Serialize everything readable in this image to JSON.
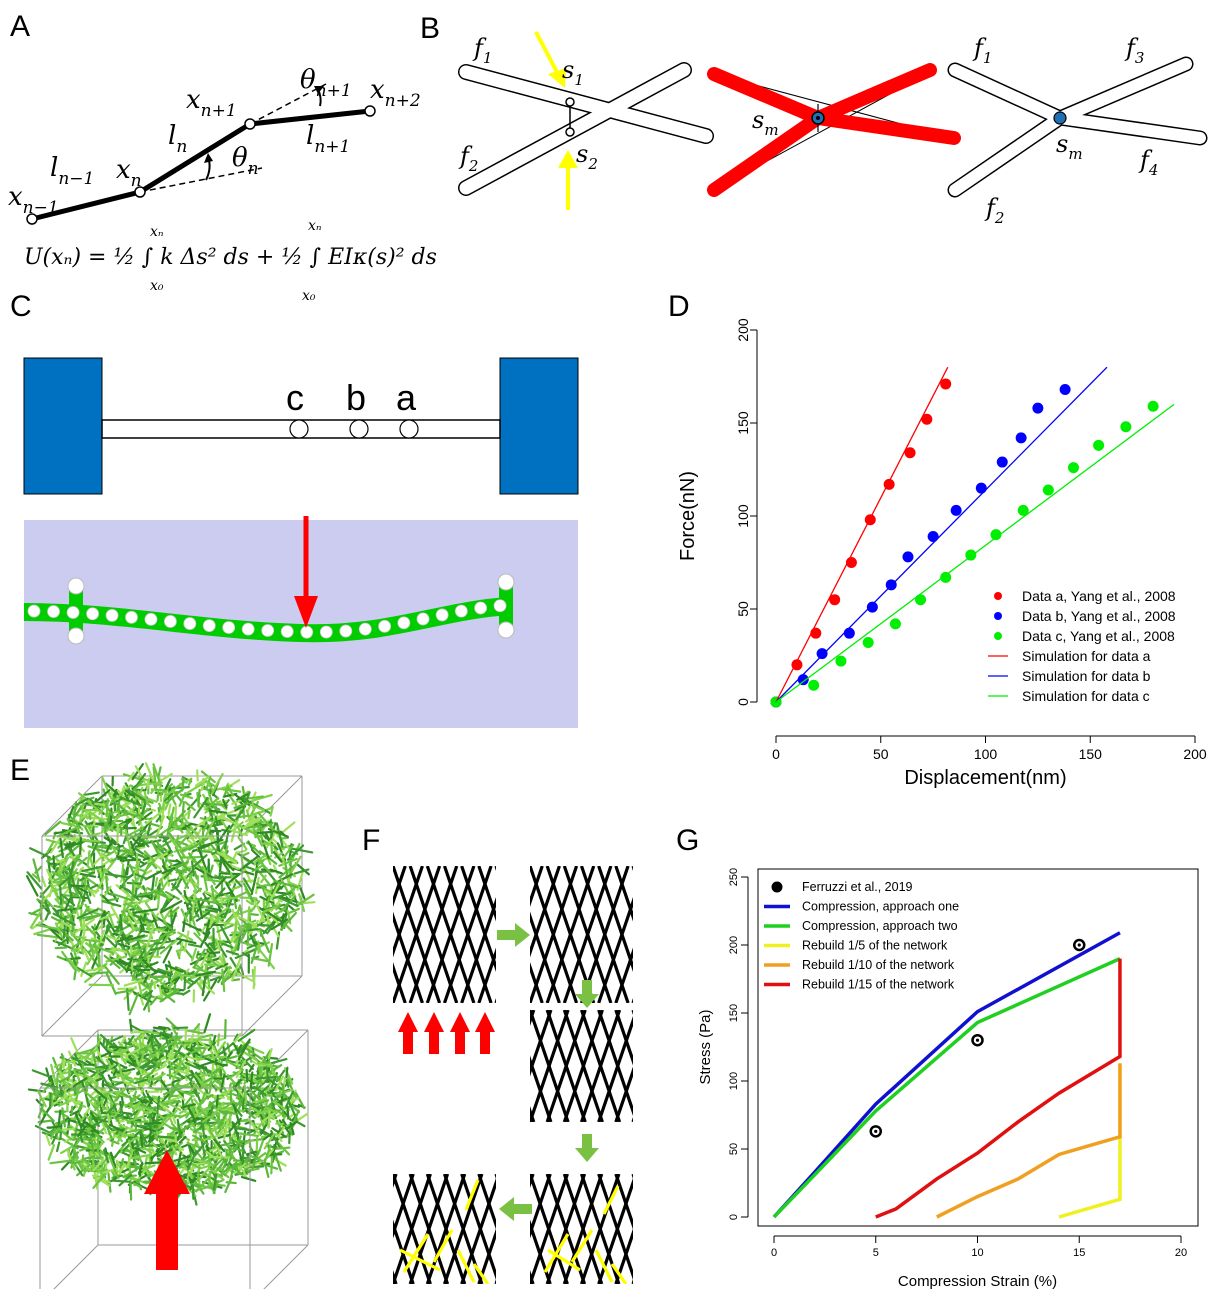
{
  "panels": {
    "A": "A",
    "B": "B",
    "C": "C",
    "D": "D",
    "E": "E",
    "F": "F",
    "G": "G"
  },
  "panelA": {
    "node_labels": [
      "x",
      "x",
      "x",
      "x"
    ],
    "node_subs": [
      "n−1",
      "n",
      "n+1",
      "n+2"
    ],
    "seg_labels": [
      "l",
      "l",
      "l"
    ],
    "seg_subs": [
      "n−1",
      "n",
      "n+1"
    ],
    "angle_labels": [
      "θ",
      "θ"
    ],
    "angle_subs": [
      "n",
      "n+1"
    ],
    "equation": "U(xₙ) = ½ ∫ k Δs² ds + ½ ∫ EIκ(s)² ds",
    "int_lower": "x₀",
    "int_upper": "xₙ"
  },
  "panelB": {
    "labels": [
      "f",
      "f",
      "s",
      "s",
      "s",
      "f",
      "f",
      "f",
      "f",
      "s"
    ],
    "subs": [
      "1",
      "2",
      "1",
      "2",
      "m",
      "1",
      "2",
      "3",
      "4",
      "m"
    ],
    "colors": {
      "highlight": "#ff0000",
      "arrow": "#ffff00",
      "node": "#1f6fb5"
    }
  },
  "panelC": {
    "point_labels": [
      "c",
      "b",
      "a"
    ],
    "colors": {
      "block": "#0070c0",
      "sim_bg": "#ccccf0",
      "beam": "#00cc00",
      "force": "#ff0000"
    }
  },
  "panelD": {
    "chart_data": {
      "type": "scatter",
      "xlabel": "Displacement(nm)",
      "ylabel": "Force(nN)",
      "xlim": [
        0,
        200
      ],
      "ylim": [
        0,
        200
      ],
      "xticks": [
        0,
        50,
        100,
        150,
        200
      ],
      "yticks": [
        0,
        50,
        100,
        150,
        200
      ],
      "legend_position": "bottom-right",
      "series": [
        {
          "name": "Data a, Yang et al., 2008",
          "kind": "points",
          "color": "#ff0000",
          "x": [
            0,
            10,
            19,
            28,
            36,
            45,
            54,
            64,
            72,
            81
          ],
          "y": [
            0,
            20,
            37,
            55,
            75,
            98,
            117,
            134,
            152,
            171
          ]
        },
        {
          "name": "Data b, Yang et al., 2008",
          "kind": "points",
          "color": "#0000ff",
          "x": [
            0,
            13,
            22,
            35,
            46,
            55,
            63,
            75,
            86,
            98,
            108,
            117,
            125,
            138
          ],
          "y": [
            0,
            12,
            26,
            37,
            51,
            63,
            78,
            89,
            103,
            115,
            129,
            142,
            158,
            168
          ]
        },
        {
          "name": "Data c, Yang et al., 2008",
          "kind": "points",
          "color": "#00ee00",
          "x": [
            0,
            18,
            31,
            44,
            57,
            69,
            81,
            93,
            105,
            118,
            130,
            142,
            154,
            167,
            180
          ],
          "y": [
            0,
            9,
            22,
            32,
            42,
            55,
            67,
            79,
            90,
            103,
            114,
            126,
            138,
            148,
            159
          ]
        },
        {
          "name": "Simulation for data a",
          "kind": "line",
          "color": "#ff0000",
          "x": [
            0,
            82
          ],
          "y": [
            0,
            180
          ]
        },
        {
          "name": "Simulation for data b",
          "kind": "line",
          "color": "#0000ff",
          "x": [
            0,
            158
          ],
          "y": [
            0,
            180
          ]
        },
        {
          "name": "Simulation for data c",
          "kind": "line",
          "color": "#00ee00",
          "x": [
            0,
            190
          ],
          "y": [
            0,
            160
          ]
        }
      ]
    }
  },
  "panelF": {
    "colors": {
      "arrow": "#7ac143",
      "push": "#ff0000",
      "rebuild": "#ffff00"
    }
  },
  "panelG": {
    "chart_data": {
      "type": "line",
      "xlabel": "Compression Strain (%)",
      "ylabel": "Stress (Pa)",
      "xlim": [
        0,
        20
      ],
      "ylim": [
        0,
        250
      ],
      "xticks": [
        0,
        5,
        10,
        15,
        20
      ],
      "yticks": [
        0,
        50,
        100,
        150,
        200,
        250
      ],
      "legend_position": "top-left",
      "series": [
        {
          "name": "Ferruzzi et al., 2019",
          "kind": "points",
          "color": "#000000",
          "x": [
            5,
            10,
            15
          ],
          "y": [
            63,
            130,
            200
          ]
        },
        {
          "name": "Compression, approach one",
          "kind": "line",
          "color": "#1010d0",
          "x": [
            0,
            2,
            5,
            10,
            17
          ],
          "y": [
            0,
            33,
            83,
            151,
            209
          ]
        },
        {
          "name": "Compression, approach two",
          "kind": "line",
          "color": "#20d020",
          "x": [
            0,
            2,
            5,
            10,
            17,
            17
          ],
          "y": [
            0,
            31,
            78,
            143,
            190,
            190
          ]
        },
        {
          "name": "Rebuild 1/5 of the network",
          "kind": "line",
          "color": "#f0f020",
          "x": [
            14,
            17,
            17
          ],
          "y": [
            0,
            13,
            113
          ]
        },
        {
          "name": "Rebuild 1/10 of the network",
          "kind": "line",
          "color": "#f0a020",
          "x": [
            8,
            10,
            12,
            14,
            17,
            17
          ],
          "y": [
            0,
            15,
            28,
            46,
            59,
            113
          ]
        },
        {
          "name": "Rebuild 1/15 of the network",
          "kind": "line",
          "color": "#e01010",
          "x": [
            5,
            6,
            8,
            10,
            12,
            14,
            17,
            17
          ],
          "y": [
            0,
            6,
            28,
            47,
            70,
            91,
            118,
            190
          ]
        }
      ]
    }
  }
}
